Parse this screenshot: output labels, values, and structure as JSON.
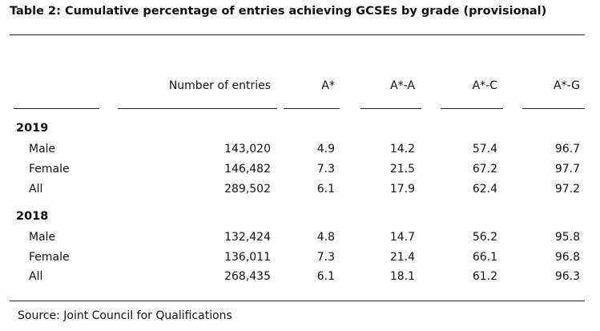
{
  "title": "Table 2: Cumulative percentage of entries achieving GCSEs by grade (provisional)",
  "columns": [
    "Number of entries",
    "A*",
    "A*-A",
    "A*-C",
    "A*-G"
  ],
  "groups": [
    {
      "year": "2019",
      "rows": [
        {
          "label": "Male",
          "cells": [
            "143,020",
            "4.9",
            "14.2",
            "57.4",
            "96.7"
          ]
        },
        {
          "label": "Female",
          "cells": [
            "146,482",
            "7.3",
            "21.5",
            "67.2",
            "97.7"
          ]
        },
        {
          "label": "All",
          "cells": [
            "289,502",
            "6.1",
            "17.9",
            "62.4",
            "97.2"
          ]
        }
      ]
    },
    {
      "year": "2018",
      "rows": [
        {
          "label": "Male",
          "cells": [
            "132,424",
            "4.8",
            "14.7",
            "56.2",
            "95.8"
          ]
        },
        {
          "label": "Female",
          "cells": [
            "136,011",
            "7.3",
            "21.4",
            "66.1",
            "96.8"
          ]
        },
        {
          "label": "All",
          "cells": [
            "268,435",
            "6.1",
            "18.1",
            "61.2",
            "96.3"
          ]
        }
      ]
    }
  ],
  "source": "Source: Joint Council for Qualifications"
}
